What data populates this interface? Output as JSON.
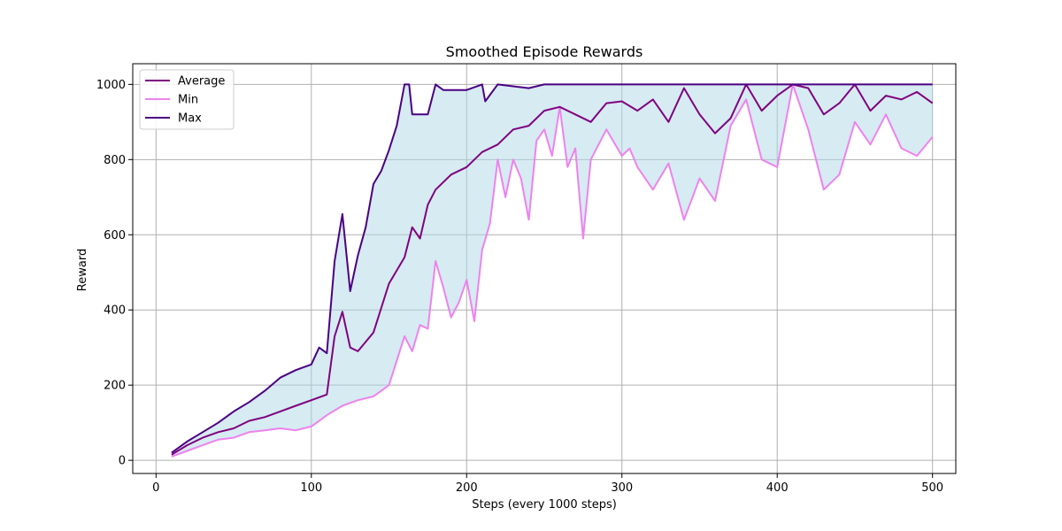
{
  "chart_data": {
    "type": "line",
    "title": "Smoothed Episode Rewards",
    "xlabel": "Steps (every 1000 steps)",
    "ylabel": "Reward",
    "xlim": [
      -15,
      515
    ],
    "ylim": [
      -35,
      1055
    ],
    "xticks": [
      0,
      100,
      200,
      300,
      400,
      500
    ],
    "yticks": [
      0,
      200,
      400,
      600,
      800,
      1000
    ],
    "grid": true,
    "legend_position": "top-left",
    "band": {
      "between": [
        "Min",
        "Max"
      ],
      "color": "#add8e6",
      "opacity": 0.5
    },
    "series": [
      {
        "name": "Average",
        "color": "#800080",
        "x": [
          10,
          20,
          30,
          40,
          50,
          60,
          70,
          80,
          90,
          100,
          110,
          115,
          120,
          125,
          130,
          140,
          150,
          160,
          165,
          170,
          175,
          180,
          190,
          200,
          210,
          220,
          230,
          240,
          250,
          260,
          270,
          280,
          290,
          300,
          310,
          320,
          330,
          340,
          350,
          360,
          370,
          380,
          390,
          400,
          410,
          420,
          430,
          440,
          450,
          460,
          470,
          480,
          490,
          500
        ],
        "y": [
          15,
          40,
          60,
          75,
          85,
          105,
          115,
          130,
          145,
          160,
          175,
          330,
          395,
          300,
          290,
          340,
          470,
          540,
          620,
          590,
          680,
          720,
          760,
          780,
          820,
          840,
          880,
          890,
          930,
          940,
          920,
          900,
          950,
          955,
          930,
          960,
          900,
          990,
          920,
          870,
          910,
          1000,
          930,
          970,
          1000,
          990,
          920,
          950,
          1000,
          930,
          970,
          960,
          980,
          950
        ]
      },
      {
        "name": "Min",
        "color": "#ee82ee",
        "x": [
          10,
          20,
          30,
          40,
          50,
          60,
          70,
          80,
          90,
          100,
          110,
          120,
          130,
          140,
          150,
          160,
          165,
          170,
          175,
          180,
          185,
          190,
          195,
          200,
          205,
          210,
          215,
          220,
          225,
          230,
          235,
          240,
          245,
          250,
          255,
          260,
          265,
          270,
          275,
          280,
          290,
          300,
          305,
          310,
          320,
          330,
          340,
          350,
          360,
          370,
          380,
          390,
          400,
          410,
          420,
          430,
          440,
          450,
          460,
          470,
          480,
          490,
          500
        ],
        "y": [
          10,
          25,
          40,
          55,
          60,
          75,
          80,
          85,
          80,
          90,
          120,
          145,
          160,
          170,
          200,
          330,
          290,
          360,
          350,
          530,
          460,
          380,
          420,
          480,
          370,
          560,
          630,
          800,
          700,
          800,
          750,
          640,
          850,
          880,
          810,
          940,
          780,
          830,
          590,
          800,
          880,
          810,
          830,
          780,
          720,
          790,
          640,
          750,
          690,
          890,
          960,
          800,
          780,
          1000,
          880,
          720,
          760,
          900,
          840,
          920,
          830,
          810,
          860
        ]
      },
      {
        "name": "Max",
        "color": "#4b0082",
        "x": [
          10,
          20,
          30,
          40,
          50,
          60,
          70,
          80,
          90,
          100,
          105,
          110,
          115,
          120,
          125,
          130,
          135,
          140,
          145,
          150,
          155,
          160,
          163,
          165,
          175,
          180,
          185,
          200,
          210,
          212,
          220,
          240,
          250,
          260,
          300,
          400,
          500
        ],
        "y": [
          20,
          50,
          75,
          100,
          130,
          155,
          185,
          220,
          240,
          255,
          300,
          285,
          530,
          655,
          450,
          545,
          620,
          735,
          770,
          825,
          890,
          1000,
          1000,
          920,
          920,
          1000,
          985,
          985,
          1000,
          955,
          1000,
          990,
          1000,
          1000,
          1000,
          1000,
          1000
        ]
      }
    ]
  }
}
